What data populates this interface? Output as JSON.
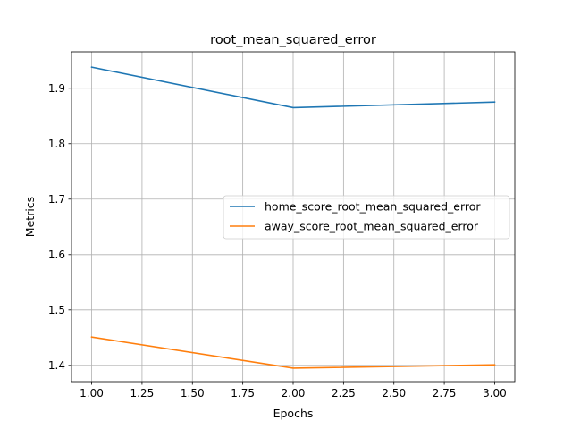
{
  "chart_data": {
    "type": "line",
    "title": "root_mean_squared_error",
    "xlabel": "Epochs",
    "ylabel": "Metrics",
    "x": [
      1.0,
      2.0,
      3.0
    ],
    "series": [
      {
        "name": "home_score_root_mean_squared_error",
        "values": [
          1.938,
          1.865,
          1.875
        ],
        "color": "#1f77b4"
      },
      {
        "name": "away_score_root_mean_squared_error",
        "values": [
          1.451,
          1.395,
          1.401
        ],
        "color": "#ff7f0e"
      }
    ],
    "xlim": [
      0.9,
      3.1
    ],
    "ylim": [
      1.3707,
      1.9657
    ],
    "xticks": [
      1.0,
      1.25,
      1.5,
      1.75,
      2.0,
      2.25,
      2.5,
      2.75,
      3.0
    ],
    "xtick_labels": [
      "1.00",
      "1.25",
      "1.50",
      "1.75",
      "2.00",
      "2.25",
      "2.50",
      "2.75",
      "3.00"
    ],
    "yticks": [
      1.4,
      1.5,
      1.6,
      1.7,
      1.8,
      1.9
    ],
    "ytick_labels": [
      "1.4",
      "1.5",
      "1.6",
      "1.7",
      "1.8",
      "1.9"
    ],
    "grid": true,
    "legend_position": "center-right"
  }
}
